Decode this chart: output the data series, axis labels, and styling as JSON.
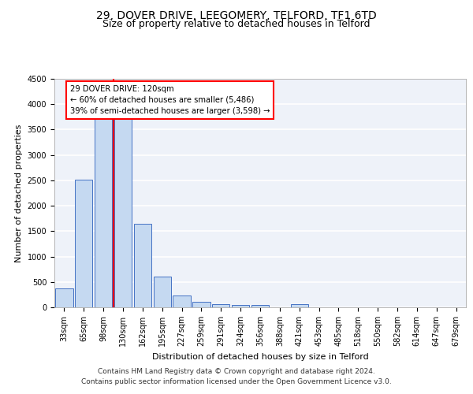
{
  "title1": "29, DOVER DRIVE, LEEGOMERY, TELFORD, TF1 6TD",
  "title2": "Size of property relative to detached houses in Telford",
  "xlabel": "Distribution of detached houses by size in Telford",
  "ylabel": "Number of detached properties",
  "categories": [
    "33sqm",
    "65sqm",
    "98sqm",
    "130sqm",
    "162sqm",
    "195sqm",
    "227sqm",
    "259sqm",
    "291sqm",
    "324sqm",
    "356sqm",
    "388sqm",
    "421sqm",
    "453sqm",
    "485sqm",
    "518sqm",
    "550sqm",
    "582sqm",
    "614sqm",
    "647sqm",
    "679sqm"
  ],
  "values": [
    380,
    2510,
    3740,
    3740,
    1640,
    600,
    240,
    110,
    60,
    50,
    50,
    0,
    60,
    0,
    0,
    0,
    0,
    0,
    0,
    0,
    0
  ],
  "bar_color": "#c5d9f1",
  "bar_edge_color": "#4472c4",
  "property_line_index": 3,
  "annotation_box_text": "29 DOVER DRIVE: 120sqm\n← 60% of detached houses are smaller (5,486)\n39% of semi-detached houses are larger (3,598) →",
  "footnote1": "Contains HM Land Registry data © Crown copyright and database right 2024.",
  "footnote2": "Contains public sector information licensed under the Open Government Licence v3.0.",
  "ylim": [
    0,
    4500
  ],
  "yticks": [
    0,
    500,
    1000,
    1500,
    2000,
    2500,
    3000,
    3500,
    4000,
    4500
  ],
  "bg_color": "#eef2f9",
  "grid_color": "#ffffff",
  "title1_fontsize": 10,
  "title2_fontsize": 9,
  "axis_label_fontsize": 8,
  "tick_fontsize": 7,
  "footnote_fontsize": 6.5
}
